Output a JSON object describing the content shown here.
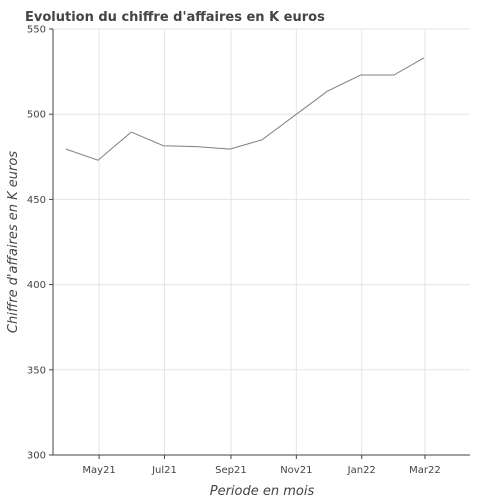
{
  "chart_data": {
    "type": "line",
    "title": "Evolution du chiffre d'affaires en K euros",
    "xlabel": "Periode en mois",
    "ylabel": "Chiffre d'affaires en K euros",
    "x_type": "date",
    "xlim": [
      "2021-03-19",
      "2022-04-12"
    ],
    "ylim": [
      300,
      550
    ],
    "x_ticks": [
      {
        "value": "2021-05-01",
        "label": "May21"
      },
      {
        "value": "2021-07-01",
        "label": "Jul21"
      },
      {
        "value": "2021-09-01",
        "label": "Sep21"
      },
      {
        "value": "2021-11-01",
        "label": "Nov21"
      },
      {
        "value": "2022-01-01",
        "label": "Jan22"
      },
      {
        "value": "2022-03-01",
        "label": "Mar22"
      }
    ],
    "y_ticks": [
      300,
      350,
      400,
      450,
      500,
      550
    ],
    "grid": true,
    "series": [
      {
        "color": "#808080",
        "x": [
          "2021-03-31",
          "2021-04-30",
          "2021-05-31",
          "2021-06-30",
          "2021-07-31",
          "2021-08-31",
          "2021-09-30",
          "2021-10-31",
          "2021-11-30",
          "2021-12-31",
          "2022-01-31",
          "2022-02-28"
        ],
        "values": [
          479.5,
          473,
          489.5,
          481.5,
          481,
          479.5,
          485,
          499.5,
          513.5,
          523,
          523,
          533
        ]
      }
    ]
  }
}
